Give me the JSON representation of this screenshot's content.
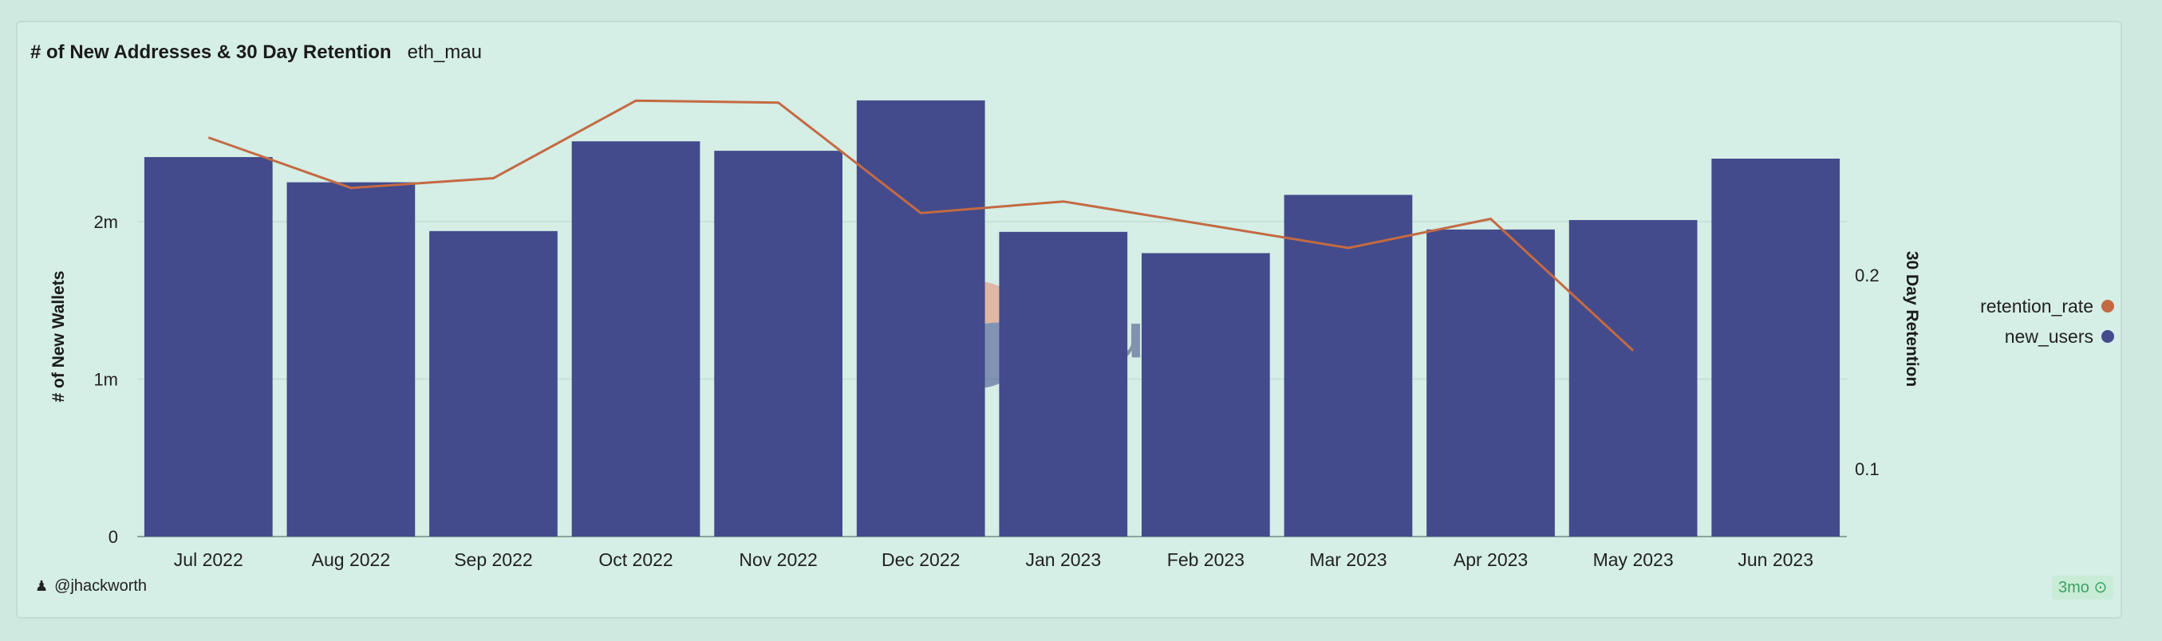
{
  "header": {
    "title": "# of New Addresses & 30 Day Retention",
    "subtitle": "eth_mau"
  },
  "watermark": {
    "text": "Dune"
  },
  "footer": {
    "author": "@jhackworth",
    "age": "3mo",
    "status_icon": "check-circle-icon"
  },
  "colors": {
    "bars": "#434b8c",
    "line": "#c46a43",
    "background": "#d5eee6"
  },
  "chart_data": {
    "type": "bar+line",
    "categories": [
      "Jul 2022",
      "Aug 2022",
      "Sep 2022",
      "Oct 2022",
      "Nov 2022",
      "Dec 2022",
      "Jan 2023",
      "Feb 2023",
      "Mar 2023",
      "Apr 2023",
      "May 2023",
      "Jun 2023"
    ],
    "series": [
      {
        "name": "new_users",
        "type": "bar",
        "axis": "left",
        "values": [
          2410000,
          2250000,
          1940000,
          2510000,
          2450000,
          2770000,
          1935000,
          1800000,
          2170000,
          1950000,
          2010000,
          2400000
        ]
      },
      {
        "name": "retention_rate",
        "type": "line",
        "axis": "right",
        "values": [
          0.271,
          0.245,
          0.25,
          0.29,
          0.289,
          0.232,
          0.238,
          0.226,
          0.214,
          0.229,
          0.161,
          null
        ]
      }
    ],
    "y_left": {
      "label": "# of New Wallets",
      "ticks": [
        0,
        1000000,
        2000000
      ],
      "tick_labels": [
        "0",
        "1m",
        "2m"
      ]
    },
    "y_right": {
      "label": "30 Day Retention",
      "ticks": [
        0.1,
        0.2
      ],
      "tick_labels": [
        "0.1",
        "0.2"
      ]
    },
    "legend": {
      "placement": "right",
      "entries": [
        "retention_rate",
        "new_users"
      ]
    },
    "grid": true
  }
}
